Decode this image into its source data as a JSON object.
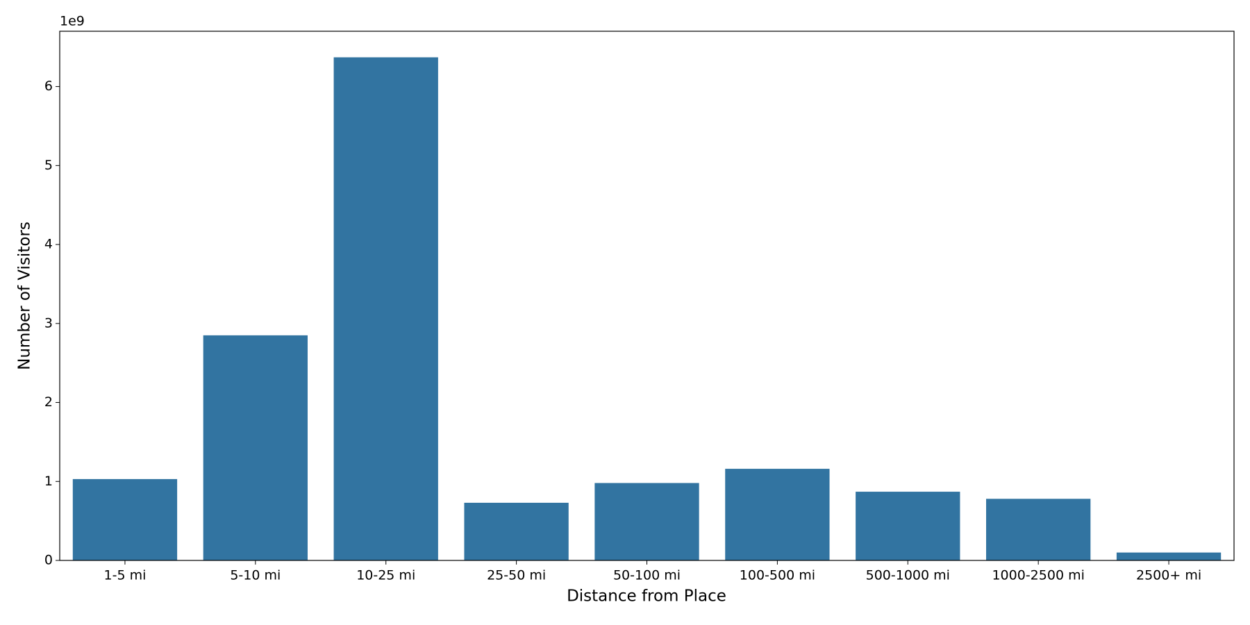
{
  "chart_data": {
    "type": "bar",
    "x_label": "Distance from Place",
    "y_label": "Number of Visitors",
    "y_offset_label": "1e9",
    "categories": [
      "1-5 mi",
      "5-10 mi",
      "10-25 mi",
      "25-50 mi",
      "50-100 mi",
      "100-500 mi",
      "500-1000 mi",
      "1000-2500 mi",
      "2500+ mi"
    ],
    "values": [
      1.03,
      2.85,
      6.37,
      0.73,
      0.98,
      1.16,
      0.87,
      0.78,
      0.1
    ],
    "color": "#3274a1",
    "ylim": [
      0,
      6.7
    ],
    "yticks": [
      0,
      1,
      2,
      3,
      4,
      5,
      6
    ],
    "grid": false
  }
}
